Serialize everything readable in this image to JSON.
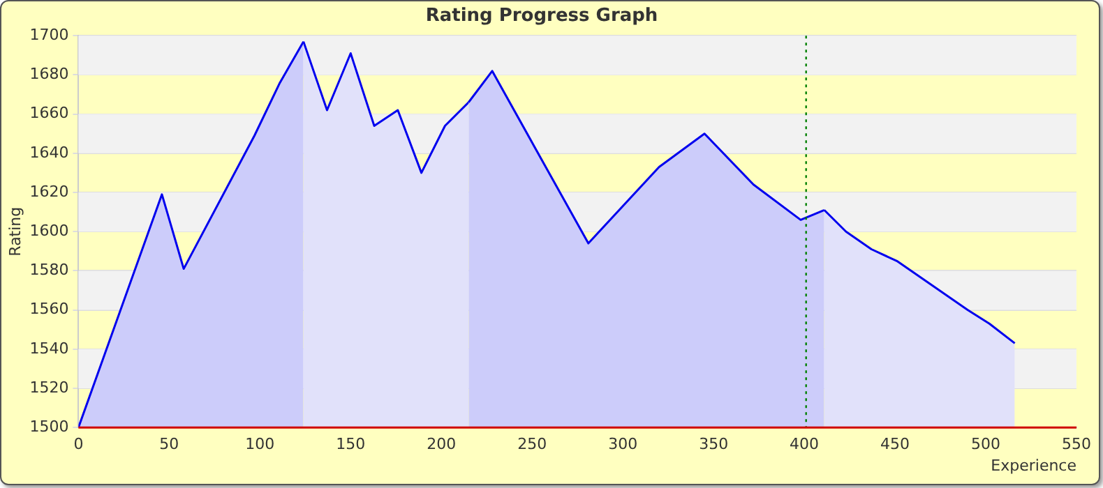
{
  "chart_data": {
    "type": "area",
    "title": "Rating Progress Graph",
    "xlabel": "Experience",
    "ylabel": "Rating",
    "x": [
      0,
      46,
      58,
      97,
      111,
      124,
      137,
      150,
      163,
      176,
      189,
      202,
      215,
      228,
      281,
      320,
      345,
      372,
      398,
      411,
      423,
      437,
      451,
      490,
      502,
      516
    ],
    "series": [
      {
        "color": "#ccccfa",
        "values": [
          1500,
          1619,
          1581,
          1649,
          1676,
          1697,
          null,
          null,
          null,
          null,
          null,
          null,
          1666,
          1682,
          1594,
          1633,
          1650,
          1624,
          1606,
          1611,
          null,
          null,
          null,
          null,
          null,
          null
        ]
      },
      {
        "color": "#e1e1fa",
        "values": [
          null,
          null,
          null,
          null,
          null,
          1697,
          1662,
          1691,
          1654,
          1662,
          1630,
          1654,
          1666,
          null,
          null,
          null,
          null,
          null,
          null,
          1611,
          1600,
          1591,
          1585,
          1560,
          1553,
          1543
        ]
      }
    ],
    "xlim": [
      0,
      550
    ],
    "xticks": [
      0,
      50,
      100,
      150,
      200,
      250,
      300,
      350,
      400,
      450,
      500,
      550
    ],
    "ylim": [
      1500,
      1700
    ],
    "yticks": [
      1500,
      1520,
      1540,
      1560,
      1580,
      1600,
      1620,
      1640,
      1660,
      1680,
      1700
    ],
    "grid": "y",
    "legend": false,
    "marker": "none",
    "line_style": "solid",
    "ref_lines": [
      {
        "axis": "x",
        "value": 401,
        "color": "#008000",
        "line_style": "dotted"
      }
    ]
  }
}
